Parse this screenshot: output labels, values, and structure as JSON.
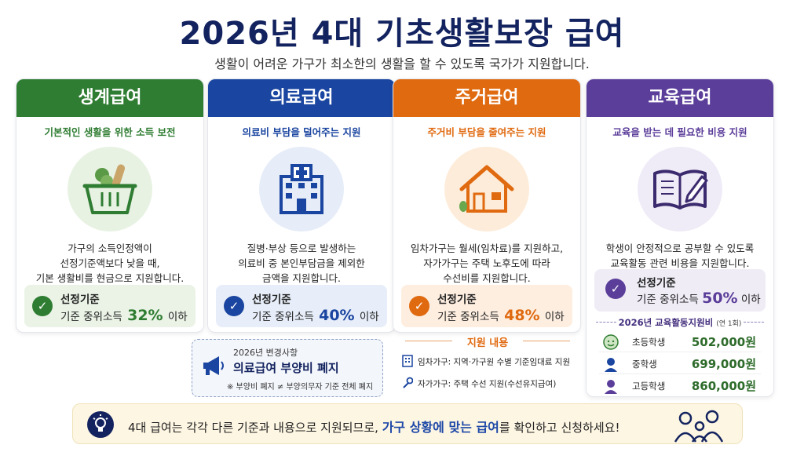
{
  "header": {
    "title": "2026년 4대 기초생활보장 급여",
    "subtitle": "생활이 어려운 가구가 최소한의 생활을 할 수 있도록 국가가 지원합니다."
  },
  "cards": [
    {
      "title": "생계급여",
      "tagline": "기본적인 생활을 위한 소득 보전",
      "desc": [
        "가구의 소득인정액이",
        "선정기준액보다 낮을 때,",
        "기본 생활비를 현금으로 지원합니다."
      ],
      "criteria_label": "선정기준",
      "criteria_prefix": "기준 중위소득",
      "criteria_pct": "32%",
      "criteria_suffix": "이하",
      "color": "#2f7d32",
      "icon": "grocery-basket-icon"
    },
    {
      "title": "의료급여",
      "tagline": "의료비 부담을 덜어주는 지원",
      "desc": [
        "질병·부상 등으로 발생하는",
        "의료비 중 본인부담금을 제외한",
        "금액을 지원합니다."
      ],
      "criteria_label": "선정기준",
      "criteria_prefix": "기준 중위소득",
      "criteria_pct": "40%",
      "criteria_suffix": "이하",
      "color": "#1a45a0",
      "icon": "hospital-icon"
    },
    {
      "title": "주거급여",
      "tagline": "주거비 부담을 줄여주는 지원",
      "desc": [
        "임차가구는 월세(임차료)를 지원하고,",
        "자가가구는 주택 노후도에 따라",
        "수선비를 지원합니다."
      ],
      "criteria_label": "선정기준",
      "criteria_prefix": "기준 중위소득",
      "criteria_pct": "48%",
      "criteria_suffix": "이하",
      "color": "#e06a10",
      "icon": "house-icon"
    },
    {
      "title": "교육급여",
      "tagline": "교육을 받는 데 필요한 비용 지원",
      "desc": [
        "학생이 안정적으로 공부할 수 있도록",
        "교육활동 관련 비용을 지원합니다."
      ],
      "criteria_label": "선정기준",
      "criteria_prefix": "기준 중위소득",
      "criteria_pct": "50%",
      "criteria_suffix": "이하",
      "color": "#5b3d9a",
      "icon": "book-pencil-icon"
    }
  ],
  "notice": {
    "small": "2026년 변경사항",
    "main": "의료급여 부양비 폐지",
    "note": "※ 부양비 폐지 ≠ 부양의무자 기준 전체 폐지"
  },
  "support": {
    "title": "지원 내용",
    "rows": [
      {
        "text": "임차가구: 지역·가구원 수별 기준임대료 지원",
        "icon": "building-icon"
      },
      {
        "text": "자가가구: 주택 수선 지원(수선유지급여)",
        "icon": "wrench-icon"
      }
    ]
  },
  "education": {
    "subtitle": "2026년 교육활동지원비",
    "subtitle_note": "(연 1회)",
    "rows": [
      {
        "name": "초등학생",
        "amount": "502,000원",
        "icon": "elementary-student-icon"
      },
      {
        "name": "중학생",
        "amount": "699,000원",
        "icon": "middle-student-icon"
      },
      {
        "name": "고등학생",
        "amount": "860,000원",
        "icon": "high-student-icon"
      }
    ]
  },
  "footer": {
    "text_before": "4대 급여는 각각 다른 기준과 내용으로 지원되므로,",
    "highlight": "가구 상황에 맞는 급여",
    "text_after": "를 확인하고 신청하세요!",
    "icon": "lightbulb-icon"
  }
}
